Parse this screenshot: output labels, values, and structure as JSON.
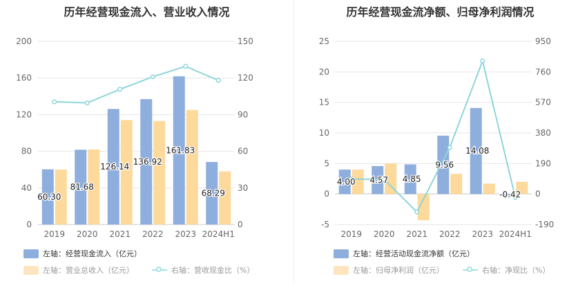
{
  "chart_data": [
    {
      "id": "left",
      "type": "bar",
      "title": "历年经营现金流入、营业收入情况",
      "categories": [
        "2019",
        "2020",
        "2021",
        "2022",
        "2023",
        "2024H1"
      ],
      "left_axis": {
        "ylim": [
          0,
          200
        ],
        "ticks": [
          "0",
          "40",
          "80",
          "120",
          "160",
          "200"
        ]
      },
      "right_axis": {
        "ylim": [
          0,
          150
        ],
        "ticks": [
          "0",
          "30",
          "60",
          "90",
          "120",
          "150"
        ]
      },
      "series": [
        {
          "name": "左轴：经营现金流入（亿元）",
          "axis": "left",
          "kind": "bar",
          "color": "#8eaedd",
          "values": [
            60.3,
            81.68,
            126.14,
            136.92,
            161.83,
            68.29
          ],
          "labels": [
            "60.30",
            "81.68",
            "126.14",
            "136.92",
            "161.83",
            "68.29"
          ]
        },
        {
          "name": "左轴：营业总收入（亿元）",
          "axis": "left",
          "kind": "bar",
          "color": "#fdd99b",
          "values": [
            60,
            82,
            114,
            113,
            125,
            58
          ]
        },
        {
          "name": "右轴：营收现金比（%）",
          "axis": "right",
          "kind": "line",
          "color": "#8dd5d9",
          "values": [
            100.5,
            99.6,
            110.7,
            121,
            129.5,
            118
          ]
        }
      ]
    },
    {
      "id": "right",
      "type": "bar",
      "title": "历年经营现金流净额、归母净利润情况",
      "categories": [
        "2019",
        "2020",
        "2021",
        "2022",
        "2023",
        "2024H1"
      ],
      "left_axis": {
        "ylim": [
          -5,
          25
        ],
        "ticks": [
          "-5",
          "0",
          "5",
          "10",
          "15",
          "20",
          "25"
        ]
      },
      "right_axis": {
        "ylim": [
          -190,
          950
        ],
        "ticks": [
          "-190",
          "0",
          "190",
          "380",
          "570",
          "760",
          "950"
        ]
      },
      "series": [
        {
          "name": "左轴：经营活动现金流净额（亿元）",
          "axis": "left",
          "kind": "bar",
          "color": "#8eaedd",
          "values": [
            4.0,
            4.57,
            4.85,
            9.56,
            14.08,
            -0.42
          ],
          "labels": [
            "4.00",
            "4.57",
            "4.85",
            "9.56",
            "14.08",
            "-0.42"
          ]
        },
        {
          "name": "左轴：归母净利润（亿元）",
          "axis": "left",
          "kind": "bar",
          "color": "#fdd99b",
          "values": [
            4.0,
            5.0,
            -4.3,
            3.3,
            1.7,
            2.0
          ]
        },
        {
          "name": "右轴：净现比（%）",
          "axis": "right",
          "kind": "line",
          "color": "#8dd5d9",
          "values": [
            93,
            91,
            -112,
            289,
            828,
            -21
          ]
        }
      ]
    }
  ]
}
